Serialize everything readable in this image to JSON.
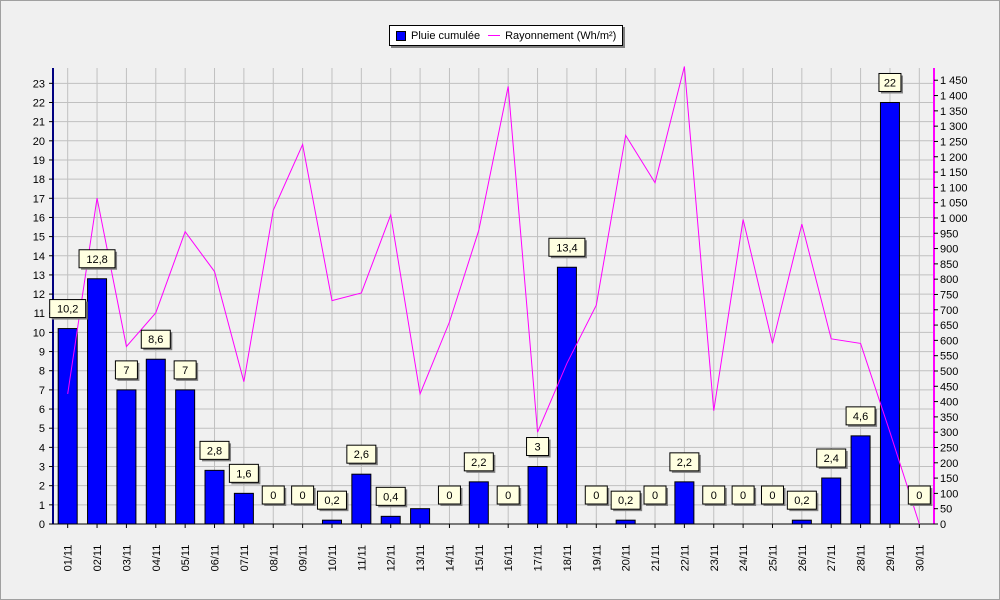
{
  "legend": {
    "bar_label": "Pluie cumulée",
    "line_label": "Rayonnement (Wh/m²)"
  },
  "colors": {
    "bar_fill": "#0000ff",
    "line": "#ff00ff",
    "label_fill": "#ffffe1",
    "grid": "#c0c0c0",
    "plot_bg": "#f0f0f0"
  },
  "chart_data": {
    "type": "bar",
    "categories": [
      "01/11",
      "02/11",
      "03/11",
      "04/11",
      "05/11",
      "06/11",
      "07/11",
      "08/11",
      "09/11",
      "10/11",
      "11/11",
      "12/11",
      "13/11",
      "14/11",
      "15/11",
      "16/11",
      "17/11",
      "18/11",
      "19/11",
      "20/11",
      "21/11",
      "22/11",
      "23/11",
      "24/11",
      "25/11",
      "26/11",
      "27/11",
      "28/11",
      "29/11",
      "30/11"
    ],
    "series": [
      {
        "name": "Pluie cumulée",
        "type": "bar",
        "axis": "left",
        "values": [
          10.2,
          12.8,
          7,
          8.6,
          7,
          2.8,
          1.6,
          0,
          0,
          0.2,
          2.6,
          0.4,
          0.8,
          0,
          2.2,
          0,
          3,
          13.4,
          0,
          0.2,
          0,
          2.2,
          0,
          0,
          0,
          0.2,
          2.4,
          4.6,
          22,
          0
        ],
        "labels": [
          "10,2",
          "12,8",
          "7",
          "8,6",
          "7",
          "2,8",
          "1,6",
          "0",
          "0",
          "0,2",
          "2,6",
          "0,4",
          null,
          "0",
          "2,2",
          "0",
          "3",
          "13,4",
          "0",
          "0,2",
          "0",
          "2,2",
          "0",
          "0",
          "0",
          "0,2",
          "2,4",
          "4,6",
          "22",
          "0"
        ]
      },
      {
        "name": "Rayonnement (Wh/m²)",
        "type": "line",
        "axis": "right",
        "values": [
          425,
          1065,
          580,
          690,
          955,
          825,
          465,
          1025,
          1240,
          730,
          755,
          1010,
          425,
          660,
          960,
          1430,
          300,
          525,
          715,
          1270,
          1115,
          1495,
          370,
          995,
          590,
          980,
          605,
          590,
          300,
          0
        ]
      }
    ],
    "left_axis": {
      "min": 0,
      "max": 23.8,
      "ticks": [
        0,
        1,
        2,
        3,
        4,
        5,
        6,
        7,
        8,
        9,
        10,
        11,
        12,
        13,
        14,
        15,
        16,
        17,
        18,
        19,
        20,
        21,
        22,
        23
      ]
    },
    "right_axis": {
      "min": 0,
      "max": 1490,
      "ticks": [
        "0",
        "50",
        "100",
        "150",
        "200",
        "250",
        "300",
        "350",
        "400",
        "450",
        "500",
        "550",
        "600",
        "650",
        "700",
        "750",
        "800",
        "850",
        "900",
        "950",
        "1 000",
        "1 050",
        "1 100",
        "1 150",
        "1 200",
        "1 250",
        "1 300",
        "1 350",
        "1 400",
        "1 450"
      ]
    },
    "grid": true,
    "legend_position": "top-center"
  }
}
